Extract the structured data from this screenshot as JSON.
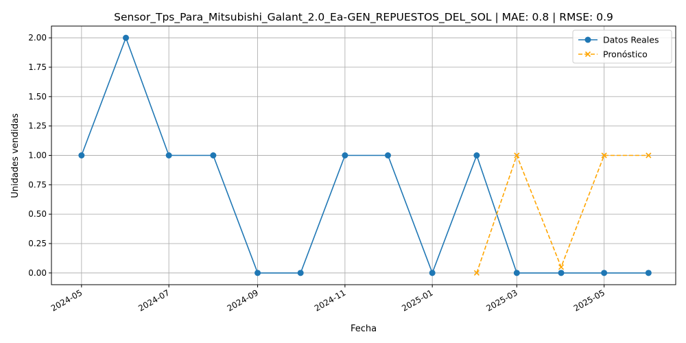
{
  "chart_data": {
    "type": "line",
    "title": "Sensor_Tps_Para_Mitsubishi_Galant_2.0_Ea-GEN_REPUESTOS_DEL_SOL | MAE: 0.8 | RMSE: 0.9",
    "xlabel": "Fecha",
    "ylabel": "Unidades vendidas",
    "ylim": [
      -0.1,
      2.1
    ],
    "xlim": [
      "2024-04-10",
      "2025-06-20"
    ],
    "grid": true,
    "legend_position": "top-right",
    "x_ticks": [
      "2024-05",
      "2024-07",
      "2024-09",
      "2024-11",
      "2025-01",
      "2025-03",
      "2025-05"
    ],
    "y_ticks": [
      "0.00",
      "0.25",
      "0.50",
      "0.75",
      "1.00",
      "1.25",
      "1.50",
      "1.75",
      "2.00"
    ],
    "series": [
      {
        "name": "Datos Reales",
        "color": "#1f77b4",
        "line_style": "solid",
        "marker": "circle",
        "x": [
          "2024-05-01",
          "2024-06-01",
          "2024-07-01",
          "2024-08-01",
          "2024-09-01",
          "2024-10-01",
          "2024-11-01",
          "2024-12-01",
          "2025-01-01",
          "2025-02-01",
          "2025-03-01",
          "2025-04-01",
          "2025-05-01",
          "2025-06-01"
        ],
        "values": [
          1,
          2,
          1,
          1,
          0,
          0,
          1,
          1,
          0,
          1,
          0,
          0,
          0,
          0
        ]
      },
      {
        "name": "Pronóstico",
        "color": "#ffa500",
        "line_style": "dashed",
        "marker": "x",
        "x": [
          "2025-02-01",
          "2025-03-01",
          "2025-04-01",
          "2025-05-01",
          "2025-06-01"
        ],
        "values": [
          0,
          1,
          0.05,
          1,
          1
        ]
      }
    ]
  }
}
